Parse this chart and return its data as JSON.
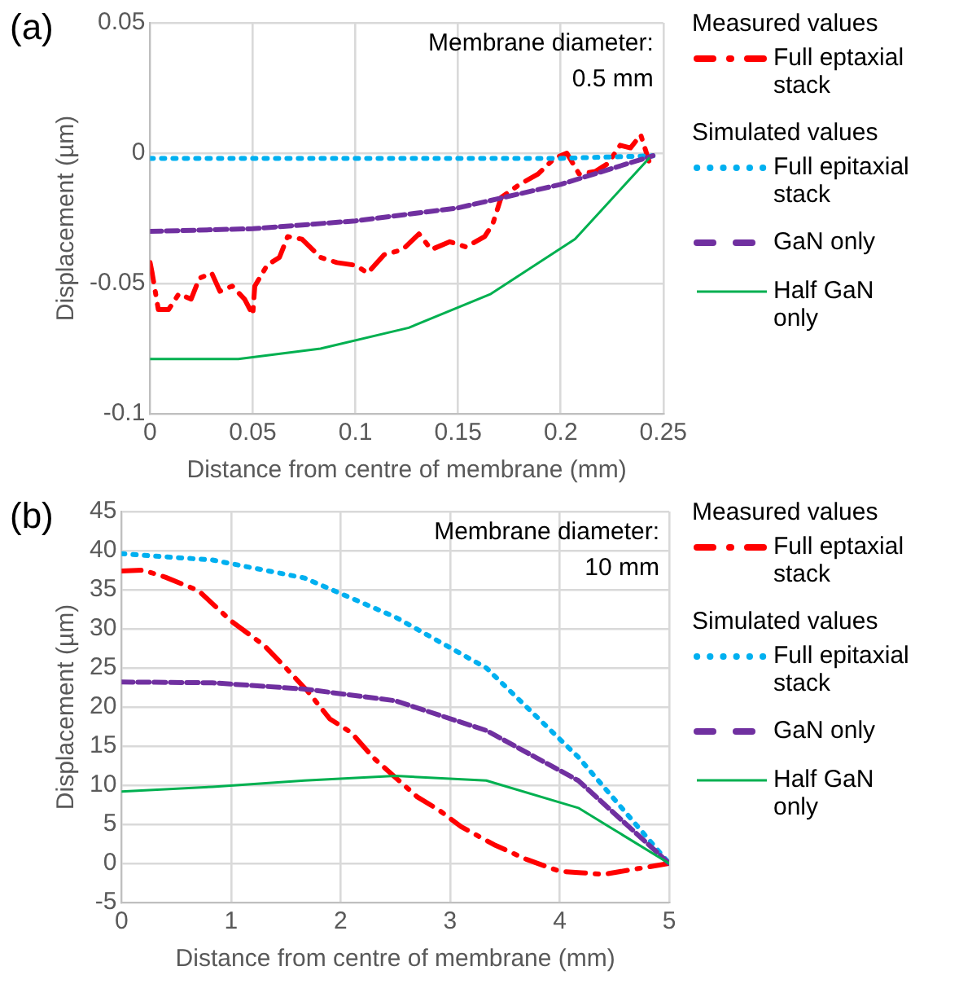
{
  "chart_data": [
    {
      "type": "line",
      "title": "(a)",
      "xlabel": "Distance from centre of membrane (mm)",
      "ylabel": "Displacement (µm)",
      "legend_title": "Measured values",
      "annotations": [
        "Membrane diameter: 0.5 mm",
        "Simulated values"
      ],
      "xlim": [
        0,
        0.25
      ],
      "xticks": [
        0,
        0.05,
        0.1,
        0.15,
        0.2,
        0.25
      ],
      "ylim": [
        -0.1,
        0.05
      ],
      "yticks": [
        -0.1,
        -0.05,
        0,
        0.05
      ],
      "grid": true,
      "legend": "right",
      "marker": "none",
      "series": [
        {
          "name": "Full eptaxial stack",
          "color": "#ff0000",
          "line_style": "dashed",
          "x": [
            0,
            0.001,
            0.004,
            0.009,
            0.014,
            0.02,
            0.024,
            0.03,
            0.034,
            0.04,
            0.046,
            0.05,
            0.051,
            0.057,
            0.063,
            0.067,
            0.074,
            0.083,
            0.091,
            0.1,
            0.106,
            0.114,
            0.123,
            0.131,
            0.137,
            0.146,
            0.154,
            0.163,
            0.167,
            0.171,
            0.18,
            0.189,
            0.197,
            0.203,
            0.209,
            0.217,
            0.223,
            0.229,
            0.234,
            0.239,
            0.243
          ],
          "values": [
            -0.042,
            -0.046,
            -0.06,
            -0.06,
            -0.054,
            -0.056,
            -0.048,
            -0.046,
            -0.053,
            -0.051,
            -0.056,
            -0.062,
            -0.051,
            -0.043,
            -0.04,
            -0.032,
            -0.033,
            -0.04,
            -0.042,
            -0.043,
            -0.046,
            -0.039,
            -0.037,
            -0.031,
            -0.037,
            -0.034,
            -0.036,
            -0.032,
            -0.027,
            -0.017,
            -0.012,
            -0.008,
            -0.002,
            0,
            -0.008,
            -0.007,
            -0.004,
            0.003,
            0.002,
            0.007,
            -0.003
          ]
        },
        {
          "name": "Full epitaxial stack",
          "color": "#00b0f0",
          "line_style": "dotted",
          "x": [
            0,
            0.05,
            0.1,
            0.15,
            0.2,
            0.245
          ],
          "values": [
            -0.002,
            -0.002,
            -0.002,
            -0.002,
            -0.002,
            -0.001
          ]
        },
        {
          "name": "GaN only",
          "color": "#7030a0",
          "line_style": "dashed",
          "x": [
            0,
            0.05,
            0.1,
            0.15,
            0.2,
            0.245
          ],
          "values": [
            -0.03,
            -0.029,
            -0.026,
            -0.021,
            -0.012,
            -0.001
          ]
        },
        {
          "name": "Half GaN only",
          "color": "#00b050",
          "line_style": "solid",
          "x": [
            0,
            0.043,
            0.083,
            0.126,
            0.166,
            0.207,
            0.243
          ],
          "values": [
            -0.079,
            -0.079,
            -0.075,
            -0.067,
            -0.054,
            -0.033,
            -0.002
          ]
        }
      ]
    },
    {
      "type": "line",
      "title": "(b)",
      "xlabel": "Distance from centre of membrane (mm)",
      "ylabel": "Displacement (µm)",
      "legend_title": "Measured values",
      "annotations": [
        "Membrane diameter: 10 mm",
        "Simulated values"
      ],
      "xlim": [
        0,
        5
      ],
      "xticks": [
        0,
        1,
        2,
        3,
        4,
        5
      ],
      "ylim": [
        -5,
        45
      ],
      "yticks": [
        -5,
        0,
        5,
        10,
        15,
        20,
        25,
        30,
        35,
        40,
        45
      ],
      "grid": true,
      "legend": "right",
      "marker": "none",
      "series": [
        {
          "name": "Full eptaxial stack",
          "color": "#ff0000",
          "line_style": "dashed",
          "x": [
            0,
            0.2,
            0.4,
            0.7,
            1,
            1.3,
            1.5,
            1.7,
            1.9,
            2.1,
            2.3,
            2.5,
            2.7,
            2.9,
            3.1,
            3.4,
            3.7,
            4,
            4.2,
            4.4,
            4.7,
            5
          ],
          "values": [
            37.4,
            37.5,
            36.6,
            34.9,
            31,
            27.9,
            25,
            22,
            18.5,
            16.7,
            13.5,
            11,
            8.5,
            6.8,
            4.7,
            2.4,
            0.5,
            -1,
            -1.2,
            -1.4,
            -0.7,
            0
          ]
        },
        {
          "name": "Full epitaxial stack",
          "color": "#00b0f0",
          "line_style": "dotted",
          "x": [
            0,
            0.83,
            1.67,
            2.5,
            3.33,
            4.17,
            5
          ],
          "values": [
            39.6,
            38.8,
            36.5,
            31.5,
            25,
            13.6,
            0
          ]
        },
        {
          "name": "GaN only",
          "color": "#7030a0",
          "line_style": "dashed",
          "x": [
            0,
            0.83,
            1.67,
            2.5,
            3.33,
            4.17,
            5
          ],
          "values": [
            23.2,
            23.1,
            22.3,
            20.8,
            17,
            10.6,
            0
          ]
        },
        {
          "name": "Half GaN only",
          "color": "#00b050",
          "line_style": "solid",
          "x": [
            0,
            0.83,
            1.67,
            2.5,
            3.33,
            4.17,
            5
          ],
          "values": [
            9.2,
            9.8,
            10.6,
            11.2,
            10.6,
            7.1,
            0
          ]
        }
      ]
    }
  ]
}
